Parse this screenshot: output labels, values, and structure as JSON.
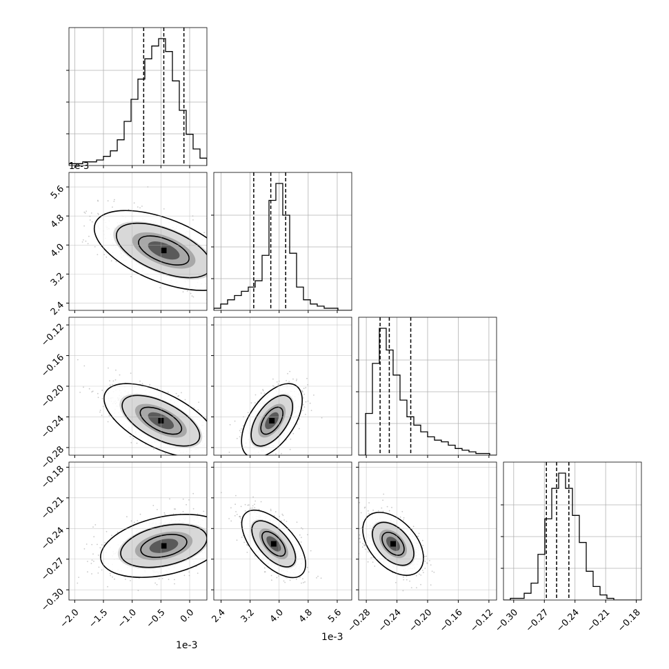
{
  "chart_data": {
    "type": "corner",
    "parameters": [
      {
        "scale_label": "1e-3",
        "range": [
          -2.1,
          0.3
        ],
        "ticks": [
          -2.0,
          -1.5,
          -1.0,
          -0.5,
          0.0
        ],
        "tick_labels": [
          "−2.0",
          "−1.5",
          "−1.0",
          "−0.5",
          "0.0"
        ]
      },
      {
        "scale_label": "1e-3",
        "range": [
          2.2,
          6.0
        ],
        "ticks": [
          2.4,
          3.2,
          4.0,
          4.8,
          5.6
        ],
        "tick_labels": [
          "2.4",
          "3.2",
          "4.0",
          "4.8",
          "5.6"
        ]
      },
      {
        "scale_label": "",
        "range": [
          -0.29,
          -0.11
        ],
        "ticks": [
          -0.28,
          -0.24,
          -0.2,
          -0.16,
          -0.12
        ],
        "tick_labels": [
          "−0.28",
          "−0.24",
          "−0.20",
          "−0.16",
          "−0.12"
        ]
      },
      {
        "scale_label": "",
        "range": [
          -0.31,
          -0.175
        ],
        "ticks": [
          -0.3,
          -0.27,
          -0.24,
          -0.21,
          -0.18
        ],
        "tick_labels": [
          "−0.30",
          "−0.27",
          "−0.24",
          "−0.21",
          "−0.18"
        ]
      }
    ],
    "histograms": [
      {
        "counts": [
          1,
          1,
          2,
          2,
          3,
          5,
          8,
          14,
          24,
          36,
          47,
          58,
          65,
          69,
          62,
          46,
          30,
          17,
          9,
          4
        ],
        "quantiles": [
          -0.8,
          -0.45,
          -0.1
        ]
      },
      {
        "counts": [
          1,
          3,
          5,
          7,
          9,
          11,
          14,
          26,
          52,
          60,
          45,
          27,
          11,
          5,
          3,
          2,
          1,
          1,
          0,
          0
        ],
        "quantiles": [
          3.3,
          3.77,
          4.18
        ]
      },
      {
        "counts": [
          0,
          25,
          55,
          76,
          63,
          48,
          33,
          23,
          18,
          14,
          11,
          9,
          8,
          6,
          4,
          3,
          2,
          1,
          1,
          0
        ],
        "quantiles": [
          -0.262,
          -0.25,
          -0.222
        ]
      },
      {
        "counts": [
          0,
          1,
          1,
          4,
          10,
          27,
          48,
          66,
          75,
          66,
          50,
          34,
          17,
          8,
          3,
          1,
          0,
          0,
          0,
          0
        ],
        "quantiles": [
          -0.268,
          -0.258,
          -0.246
        ]
      }
    ],
    "densities": [
      {
        "row": 1,
        "col": 0,
        "mean": [
          -0.45,
          3.85
        ],
        "sd": [
          0.55,
          0.5
        ],
        "corr": -0.55
      },
      {
        "row": 2,
        "col": 0,
        "mean": [
          -0.5,
          -0.245
        ],
        "sd": [
          0.45,
          0.022
        ],
        "corr": -0.6
      },
      {
        "row": 2,
        "col": 1,
        "mean": [
          3.8,
          -0.245
        ],
        "sd": [
          0.38,
          0.022
        ],
        "corr": 0.55
      },
      {
        "row": 3,
        "col": 0,
        "mean": [
          -0.45,
          -0.257
        ],
        "sd": [
          0.5,
          0.014
        ],
        "corr": 0.35
      },
      {
        "row": 3,
        "col": 1,
        "mean": [
          3.85,
          -0.255
        ],
        "sd": [
          0.4,
          0.015
        ],
        "corr": -0.6
      },
      {
        "row": 3,
        "col": 2,
        "mean": [
          -0.245,
          -0.255
        ],
        "sd": [
          0.018,
          0.014
        ],
        "corr": -0.45
      }
    ],
    "grid": true,
    "title": "",
    "xlabel": "",
    "ylabel": ""
  }
}
